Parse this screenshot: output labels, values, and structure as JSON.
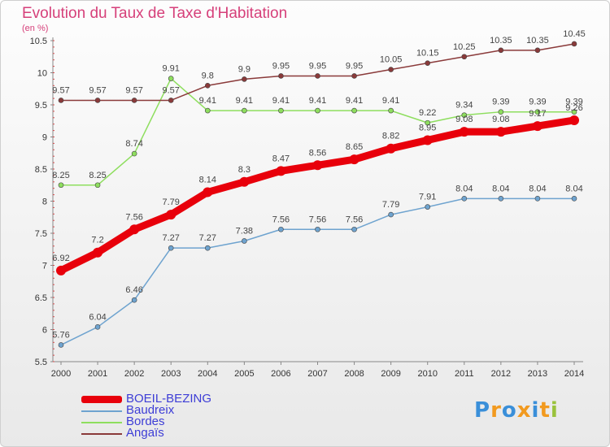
{
  "header": {
    "title": "Evolution du Taux de Taxe d'Habitation",
    "unit": "(en %)"
  },
  "logo": {
    "text": "Proxiti"
  },
  "chart_data": {
    "type": "line",
    "title": "Evolution du Taux de Taxe d'Habitation",
    "ylabel": "(en %)",
    "x": [
      "2000",
      "2001",
      "2002",
      "2003",
      "2004",
      "2005",
      "2006",
      "2007",
      "2008",
      "2009",
      "2010",
      "2011",
      "2012",
      "2013",
      "2014"
    ],
    "yticks": [
      "5.5",
      "6",
      "6.5",
      "7",
      "7.5",
      "8",
      "8.5",
      "9",
      "9.5",
      "10",
      "10.5"
    ],
    "ylim": [
      5.5,
      10.5
    ],
    "grid": false,
    "legend_position": "bottom-left",
    "series": [
      {
        "name": "BOEIL-BEZING",
        "color": "#e8000b",
        "width": 9,
        "marker": 6,
        "values": [
          6.92,
          7.2,
          7.56,
          7.79,
          8.14,
          8.3,
          8.47,
          8.56,
          8.65,
          8.82,
          8.95,
          9.08,
          9.08,
          9.17,
          9.26
        ],
        "labels": [
          "6.92",
          "7.2",
          "7.56",
          "7.79",
          "8.14",
          "8.3",
          "8.47",
          "8.56",
          "8.65",
          "8.82",
          "8.95",
          "9.08",
          "9.08",
          "9.17",
          "9.26"
        ]
      },
      {
        "name": "Baudreix",
        "color": "#6ea3cf",
        "width": 1.5,
        "marker": 3,
        "values": [
          5.76,
          6.04,
          6.46,
          7.27,
          7.27,
          7.38,
          7.56,
          7.56,
          7.56,
          7.79,
          7.91,
          8.04,
          8.04,
          8.04,
          8.04
        ],
        "labels": [
          "5.76",
          "6.04",
          "6.46",
          "7.27",
          "7.27",
          "7.38",
          "7.56",
          "7.56",
          "7.56",
          "7.79",
          "7.91",
          "8.04",
          "8.04",
          "8.04",
          "8.04"
        ]
      },
      {
        "name": "Bordes",
        "color": "#8ede5e",
        "width": 1.5,
        "marker": 3,
        "values": [
          8.25,
          8.25,
          8.74,
          9.91,
          9.41,
          9.41,
          9.41,
          9.41,
          9.41,
          9.41,
          9.22,
          9.34,
          9.39,
          9.39,
          9.39
        ],
        "labels": [
          "8.25",
          "8.25",
          "8.74",
          "9.91",
          "9.41",
          "9.41",
          "9.41",
          "9.41",
          "9.41",
          "9.41",
          "9.22",
          "9.34",
          "9.39",
          "9.39",
          "9.39"
        ]
      },
      {
        "name": "Angaïs",
        "color": "#8a3a3a",
        "width": 1.5,
        "marker": 3,
        "values": [
          9.57,
          9.57,
          9.57,
          9.57,
          9.8,
          9.9,
          9.95,
          9.95,
          9.95,
          10.05,
          10.15,
          10.25,
          10.35,
          10.35,
          10.45
        ],
        "labels": [
          "9.57",
          "9.57",
          "9.57",
          "9.57",
          "9.8",
          "9.9",
          "9.95",
          "9.95",
          "9.95",
          "10.05",
          "10.15",
          "10.25",
          "10.35",
          "10.35",
          "10.45"
        ]
      }
    ]
  }
}
